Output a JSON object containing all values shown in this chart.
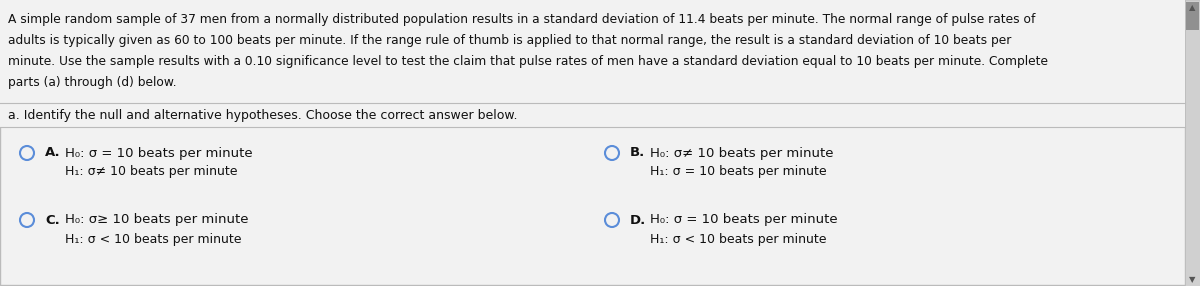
{
  "bg_color": "#f2f2f2",
  "white": "#ffffff",
  "border_color": "#bbbbbb",
  "text_color": "#111111",
  "scroll_bg": "#d0d0d0",
  "scroll_thumb": "#909090",
  "header_text_lines": [
    "A simple random sample of 37 men from a normally distributed population results in a standard deviation of 11.4 beats per minute. The normal range of pulse rates of",
    "adults is typically given as 60 to 100 beats per minute. If the range rule of thumb is applied to that normal range, the result is a standard deviation of 10 beats per",
    "minute. Use the sample results with a 0.10 significance level to test the claim that pulse rates of men have a standard deviation equal to 10 beats per minute. Complete",
    "parts (a) through (d) below."
  ],
  "section_label": "a. Identify the null and alternative hypotheses. Choose the correct answer below.",
  "options": [
    {
      "id": "A",
      "h0": "H₀: σ = 10 beats per minute",
      "h1": "H₁: σ≠ 10 beats per minute",
      "col": 0,
      "row": 0
    },
    {
      "id": "B",
      "h0": "H₀: σ≠ 10 beats per minute",
      "h1": "H₁: σ = 10 beats per minute",
      "col": 1,
      "row": 0
    },
    {
      "id": "C",
      "h0": "H₀: σ≥ 10 beats per minute",
      "h1": "H₁: σ < 10 beats per minute",
      "col": 0,
      "row": 1
    },
    {
      "id": "D",
      "h0": "H₀: σ = 10 beats per minute",
      "h1": "H₁: σ < 10 beats per minute",
      "col": 1,
      "row": 1
    }
  ],
  "font_size_header": 8.8,
  "font_size_section": 9.0,
  "font_size_options": 9.5
}
